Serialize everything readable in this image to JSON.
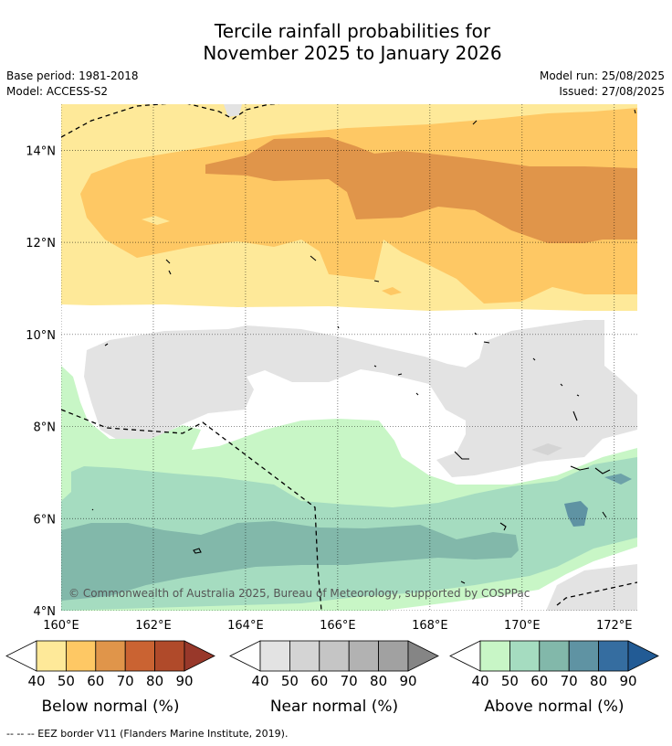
{
  "title_line1": "Tercile rainfall probabilities for",
  "title_line2": "November 2025 to January 2026",
  "meta": {
    "base_period": "Base period: 1981-2018",
    "model": "Model: ACCESS-S2",
    "model_run": "Model run: 25/08/2025",
    "issued": "Issued: 27/08/2025"
  },
  "map": {
    "copyright": "© Commonwealth of Australia 2025, Bureau of Meteorology, supported by COSPPac",
    "lat_ticks": [
      {
        "lat": 4,
        "label": "4°N"
      },
      {
        "lat": 6,
        "label": "6°N"
      },
      {
        "lat": 8,
        "label": "8°N"
      },
      {
        "lat": 10,
        "label": "10°N"
      },
      {
        "lat": 12,
        "label": "12°N"
      },
      {
        "lat": 14,
        "label": "14°N"
      }
    ],
    "lon_ticks": [
      {
        "lon": 160,
        "label": "160°E"
      },
      {
        "lon": 162,
        "label": "162°E"
      },
      {
        "lon": 164,
        "label": "164°E"
      },
      {
        "lon": 166,
        "label": "166°E"
      },
      {
        "lon": 168,
        "label": "168°E"
      },
      {
        "lon": 170,
        "label": "170°E"
      },
      {
        "lon": 172,
        "label": "172°E"
      }
    ],
    "extent": {
      "lon_min": 160,
      "lon_max": 172.5,
      "lat_min": 4,
      "lat_max": 15
    }
  },
  "colorbars": [
    {
      "label": "Below normal (%)",
      "ticks": [
        "40",
        "50",
        "60",
        "70",
        "80",
        "90"
      ],
      "colors": [
        "#fee999",
        "#fec864",
        "#e0954a",
        "#ca6332",
        "#b04a2a",
        "#98382a"
      ]
    },
    {
      "label": "Near normal (%)",
      "ticks": [
        "40",
        "50",
        "60",
        "70",
        "80",
        "90"
      ],
      "colors": [
        "#e3e3e3",
        "#d4d4d4",
        "#c5c5c5",
        "#b2b2b2",
        "#a1a1a1",
        "#858585"
      ]
    },
    {
      "label": "Above normal (%)",
      "ticks": [
        "40",
        "50",
        "60",
        "70",
        "80",
        "90"
      ],
      "colors": [
        "#c8f6c6",
        "#a5dcc0",
        "#82b8aa",
        "#5f93a3",
        "#356da0",
        "#225b95"
      ]
    }
  ],
  "footnote": "--  --  -- EEZ border V11 (Flanders Marine Institute, 2019)."
}
